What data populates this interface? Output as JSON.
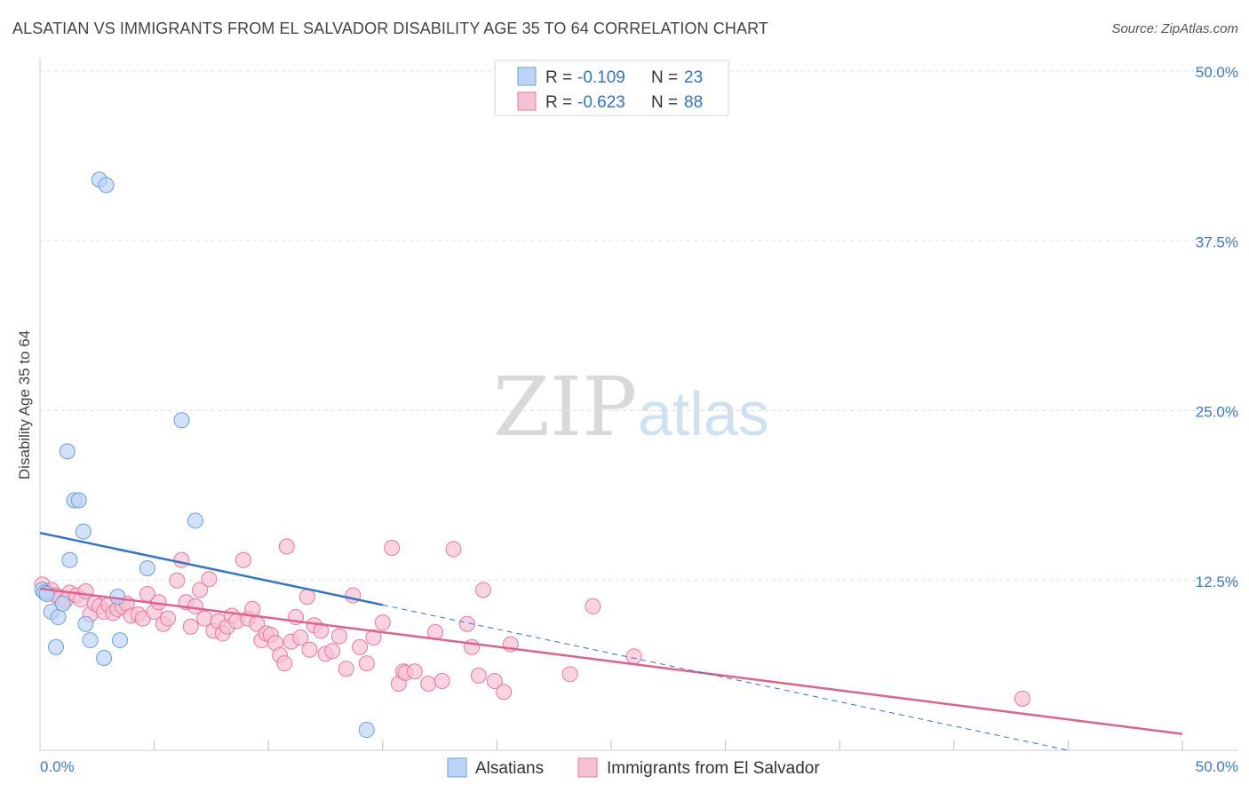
{
  "title": "ALSATIAN VS IMMIGRANTS FROM EL SALVADOR DISABILITY AGE 35 TO 64 CORRELATION CHART",
  "source": "Source: ZipAtlas.com",
  "watermark": {
    "zip": "ZIP",
    "atlas": "atlas"
  },
  "colors": {
    "blue": "#6a9fe0",
    "blue_fill": "#bcd4f6",
    "blue_line": "#2f74d0",
    "pink": "#e8799c",
    "pink_fill": "#f6c2d3",
    "pink_line": "#e0608e",
    "axis_text": "#3a78c9",
    "grid": "#dddddd"
  },
  "legend": {
    "rows": [
      {
        "r_label": "R = ",
        "r_value": "-0.109",
        "n_label": "N = ",
        "n_value": "23"
      },
      {
        "r_label": "R = ",
        "r_value": "-0.623",
        "n_label": "N = ",
        "n_value": "88"
      }
    ]
  },
  "bottom_legend": {
    "items": [
      "Alsatians",
      "Immigrants from El Salvador"
    ]
  },
  "chart_data": {
    "type": "scatter",
    "title": "ALSATIAN VS IMMIGRANTS FROM EL SALVADOR DISABILITY AGE 35 TO 64 CORRELATION CHART",
    "xlabel": "",
    "ylabel": "Disability Age 35 to 64",
    "xlim": [
      0,
      50
    ],
    "ylim": [
      0,
      50
    ],
    "x_tick_labels": [
      "0.0%",
      "50.0%"
    ],
    "y_ticks": [
      12.5,
      25.0,
      37.5,
      50.0
    ],
    "y_tick_labels": [
      "12.5%",
      "25.0%",
      "37.5%",
      "50.0%"
    ],
    "grid": true,
    "series": [
      {
        "name": "Alsatians",
        "R": -0.109,
        "N": 23,
        "points": [
          [
            0.1,
            11.8
          ],
          [
            0.2,
            11.6
          ],
          [
            0.3,
            11.5
          ],
          [
            0.5,
            10.2
          ],
          [
            0.7,
            7.6
          ],
          [
            0.8,
            9.8
          ],
          [
            1.0,
            10.8
          ],
          [
            1.2,
            22.0
          ],
          [
            1.3,
            14.0
          ],
          [
            1.5,
            18.4
          ],
          [
            1.7,
            18.4
          ],
          [
            1.9,
            16.1
          ],
          [
            2.2,
            8.1
          ],
          [
            2.8,
            6.8
          ],
          [
            2.6,
            42.0
          ],
          [
            2.9,
            41.6
          ],
          [
            3.5,
            8.1
          ],
          [
            3.4,
            11.3
          ],
          [
            4.7,
            13.4
          ],
          [
            6.2,
            24.3
          ],
          [
            6.8,
            16.9
          ],
          [
            2.0,
            9.3
          ],
          [
            14.3,
            1.5
          ]
        ],
        "trend_solid": [
          [
            0,
            16.0
          ],
          [
            15,
            10.7
          ]
        ],
        "trend_dashed": [
          [
            15,
            10.7
          ],
          [
            45,
            0
          ]
        ]
      },
      {
        "name": "Immigrants from El Salvador",
        "R": -0.623,
        "N": 88,
        "points": [
          [
            0.1,
            12.2
          ],
          [
            0.3,
            11.7
          ],
          [
            0.5,
            11.8
          ],
          [
            0.7,
            11.4
          ],
          [
            0.9,
            11.2
          ],
          [
            1.1,
            11.0
          ],
          [
            1.3,
            11.6
          ],
          [
            1.6,
            11.4
          ],
          [
            1.8,
            11.1
          ],
          [
            2.0,
            11.7
          ],
          [
            2.2,
            10.0
          ],
          [
            2.4,
            10.8
          ],
          [
            2.6,
            10.6
          ],
          [
            2.8,
            10.2
          ],
          [
            3.0,
            10.7
          ],
          [
            3.2,
            10.1
          ],
          [
            3.4,
            10.4
          ],
          [
            3.6,
            10.6
          ],
          [
            3.8,
            10.8
          ],
          [
            4.0,
            9.9
          ],
          [
            4.3,
            10.0
          ],
          [
            4.5,
            9.7
          ],
          [
            4.7,
            11.5
          ],
          [
            5.0,
            10.2
          ],
          [
            5.2,
            10.9
          ],
          [
            5.4,
            9.3
          ],
          [
            5.6,
            9.7
          ],
          [
            6.0,
            12.5
          ],
          [
            6.2,
            14.0
          ],
          [
            6.4,
            10.9
          ],
          [
            6.6,
            9.1
          ],
          [
            6.8,
            10.6
          ],
          [
            7.0,
            11.8
          ],
          [
            7.2,
            9.7
          ],
          [
            7.4,
            12.6
          ],
          [
            7.6,
            8.8
          ],
          [
            7.8,
            9.5
          ],
          [
            8.0,
            8.6
          ],
          [
            8.2,
            9.1
          ],
          [
            8.4,
            9.9
          ],
          [
            8.6,
            9.5
          ],
          [
            8.9,
            14.0
          ],
          [
            9.1,
            9.7
          ],
          [
            9.3,
            10.4
          ],
          [
            9.5,
            9.3
          ],
          [
            9.7,
            8.1
          ],
          [
            9.9,
            8.6
          ],
          [
            10.1,
            8.5
          ],
          [
            10.3,
            7.9
          ],
          [
            10.5,
            7.0
          ],
          [
            10.7,
            6.4
          ],
          [
            11.0,
            8.0
          ],
          [
            11.2,
            9.8
          ],
          [
            11.4,
            8.3
          ],
          [
            11.8,
            7.4
          ],
          [
            12.0,
            9.2
          ],
          [
            12.3,
            8.8
          ],
          [
            12.5,
            7.1
          ],
          [
            12.8,
            7.3
          ],
          [
            13.1,
            8.4
          ],
          [
            13.4,
            6.0
          ],
          [
            13.7,
            11.4
          ],
          [
            14.0,
            7.6
          ],
          [
            14.3,
            6.4
          ],
          [
            14.6,
            8.3
          ],
          [
            15.0,
            9.4
          ],
          [
            15.7,
            4.9
          ],
          [
            15.9,
            5.8
          ],
          [
            16.0,
            5.7
          ],
          [
            16.4,
            5.8
          ],
          [
            17.0,
            4.9
          ],
          [
            17.3,
            8.7
          ],
          [
            17.6,
            5.1
          ],
          [
            18.7,
            9.3
          ],
          [
            18.9,
            7.6
          ],
          [
            19.2,
            5.5
          ],
          [
            19.4,
            11.8
          ],
          [
            19.9,
            5.1
          ],
          [
            20.3,
            4.3
          ],
          [
            20.6,
            7.8
          ],
          [
            23.2,
            5.6
          ],
          [
            24.2,
            10.6
          ],
          [
            26.0,
            6.9
          ],
          [
            10.8,
            15.0
          ],
          [
            15.4,
            14.9
          ],
          [
            11.7,
            11.3
          ],
          [
            18.1,
            14.8
          ],
          [
            43.0,
            3.8
          ]
        ],
        "trend_solid": [
          [
            0,
            11.9
          ],
          [
            50,
            1.2
          ]
        ]
      }
    ]
  }
}
